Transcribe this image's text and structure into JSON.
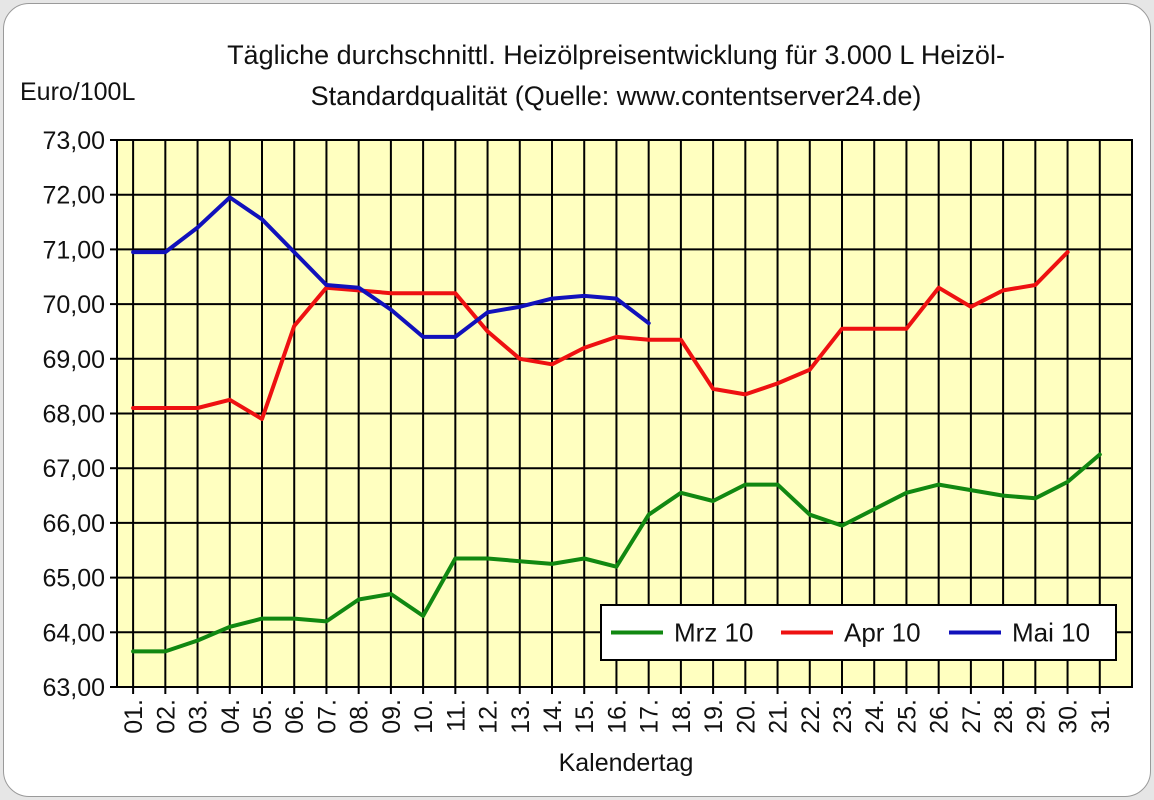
{
  "chart_data": {
    "type": "line",
    "title_lines": [
      "Tägliche durchschnittl. Heizölpreisentwicklung für 3.000 L Heizöl-",
      "Standardqualität (Quelle: www.contentserver24.de)"
    ],
    "ylabel": "Euro/100L",
    "xlabel": "Kalendertag",
    "ylim": [
      63,
      73
    ],
    "y_ticks": [
      "63,00",
      "64,00",
      "65,00",
      "66,00",
      "67,00",
      "68,00",
      "69,00",
      "70,00",
      "71,00",
      "72,00",
      "73,00"
    ],
    "categories": [
      "01.",
      "02.",
      "03.",
      "04.",
      "05.",
      "06.",
      "07.",
      "08.",
      "09.",
      "10.",
      "11.",
      "12.",
      "13.",
      "14.",
      "15.",
      "16.",
      "17.",
      "18.",
      "19.",
      "20.",
      "21.",
      "22.",
      "23.",
      "24.",
      "25.",
      "26.",
      "27.",
      "28.",
      "29.",
      "30.",
      "31."
    ],
    "grid": true,
    "plot_background": "#ffffc0",
    "legend_position": "bottom-right",
    "series": [
      {
        "name": "Mrz 10",
        "color": "#118811",
        "values": [
          63.65,
          63.65,
          63.85,
          64.1,
          64.25,
          64.25,
          64.2,
          64.6,
          64.7,
          64.3,
          65.35,
          65.35,
          65.3,
          65.25,
          65.35,
          65.2,
          66.15,
          66.55,
          66.4,
          66.7,
          66.7,
          66.15,
          65.95,
          66.25,
          66.55,
          66.7,
          66.6,
          66.5,
          66.45,
          66.75,
          67.25
        ]
      },
      {
        "name": "Apr 10",
        "color": "#ee1111",
        "values": [
          68.1,
          68.1,
          68.1,
          68.25,
          67.9,
          69.6,
          70.3,
          70.25,
          70.2,
          70.2,
          70.2,
          69.5,
          69.0,
          68.9,
          69.2,
          69.4,
          69.35,
          69.35,
          68.45,
          68.35,
          68.55,
          68.8,
          69.55,
          69.55,
          69.55,
          70.3,
          69.95,
          70.25,
          70.35,
          70.95,
          null
        ]
      },
      {
        "name": "Mai 10",
        "color": "#1111bb",
        "values": [
          70.95,
          70.95,
          71.4,
          71.95,
          71.55,
          70.95,
          70.35,
          70.3,
          69.9,
          69.4,
          69.4,
          69.85,
          69.95,
          70.1,
          70.15,
          70.1,
          69.65,
          null,
          null,
          null,
          null,
          null,
          null,
          null,
          null,
          null,
          null,
          null,
          null,
          null,
          null
        ]
      }
    ]
  }
}
